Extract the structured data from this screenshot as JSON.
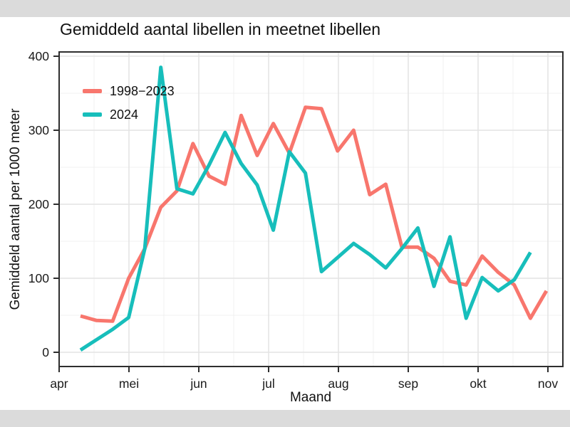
{
  "letterbox_color": "#dbdbdb",
  "figure_background": "#ffffff",
  "chart_data": {
    "type": "line",
    "title": "Gemiddeld aantal libellen in meetnet libellen",
    "xlabel": "Maand",
    "ylabel": "Gemiddeld aantal per 1000 meter",
    "x_tick_labels": [
      "apr",
      "mei",
      "jun",
      "jul",
      "aug",
      "sep",
      "okt",
      "nov"
    ],
    "y_ticks": [
      0,
      100,
      200,
      300,
      400
    ],
    "ylim": [
      0,
      400
    ],
    "grid": {
      "major": true,
      "minor": true,
      "major_color": "#e4e4e4",
      "minor_color": "#f0f0f0"
    },
    "legend_position": "top-left-inside",
    "x_offset_months": 0.306,
    "x_step_months": 0.2301,
    "series": [
      {
        "name": "1998−2023",
        "color": "#F8766D",
        "values": [
          49,
          43,
          42,
          100,
          140,
          196,
          218,
          282,
          238,
          227,
          320,
          266,
          309,
          269,
          331,
          329,
          272,
          300,
          213,
          227,
          142,
          142,
          127,
          96,
          91,
          130,
          108,
          91,
          46,
          83
        ]
      },
      {
        "name": "2024",
        "color": "#17BEBB",
        "values": [
          3,
          17,
          31,
          47,
          140,
          385,
          221,
          214,
          253,
          297,
          255,
          226,
          165,
          271,
          242,
          109,
          128,
          147,
          132,
          114,
          140,
          168,
          89,
          156,
          46,
          101,
          83,
          98,
          135
        ]
      }
    ],
    "style": {
      "line_width": 5,
      "panel_border_color": "#2e2e2e",
      "tick_color": "#2e2e2e",
      "text_color": "#1a1a1a"
    }
  }
}
